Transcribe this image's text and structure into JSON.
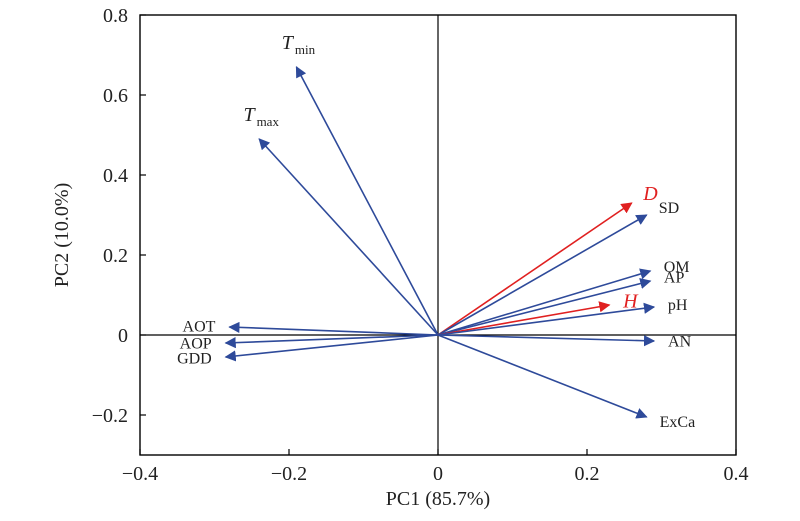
{
  "chart_data": {
    "type": "scatter",
    "subtype": "biplot",
    "title": "",
    "xlabel": "PC1 (85.7%)",
    "ylabel": "PC2 (10.0%)",
    "xlim": [
      -0.4,
      0.4
    ],
    "ylim": [
      -0.3,
      0.8
    ],
    "x_ticks": [
      {
        "value": -0.4,
        "label": "−0.4"
      },
      {
        "value": -0.2,
        "label": "−0.2"
      },
      {
        "value": 0,
        "label": "0"
      },
      {
        "value": 0.2,
        "label": "0.2"
      },
      {
        "value": 0.4,
        "label": "0.4"
      }
    ],
    "y_ticks": [
      {
        "value": -0.2,
        "label": "−0.2"
      },
      {
        "value": 0,
        "label": "0"
      },
      {
        "value": 0.2,
        "label": "0.2"
      },
      {
        "value": 0.4,
        "label": "0.4"
      },
      {
        "value": 0.6,
        "label": "0.6"
      },
      {
        "value": 0.8,
        "label": "0.8"
      }
    ],
    "grid": false,
    "zero_lines": true,
    "colors": {
      "blue": "#2e4a9a",
      "red": "#e02020",
      "axis": "#000000"
    },
    "vectors": [
      {
        "name": "T",
        "sub": "min",
        "italic": true,
        "x": -0.19,
        "y": 0.67,
        "color": "blue"
      },
      {
        "name": "T",
        "sub": "max",
        "italic": true,
        "x": -0.24,
        "y": 0.49,
        "color": "blue"
      },
      {
        "name": "AOT",
        "x": -0.28,
        "y": 0.02,
        "color": "blue"
      },
      {
        "name": "AOP",
        "x": -0.285,
        "y": -0.02,
        "color": "blue"
      },
      {
        "name": "GDD",
        "x": -0.285,
        "y": -0.055,
        "color": "blue"
      },
      {
        "name": "D",
        "italic": true,
        "x": 0.26,
        "y": 0.33,
        "color": "red"
      },
      {
        "name": "SD",
        "x": 0.28,
        "y": 0.3,
        "color": "blue"
      },
      {
        "name": "OM",
        "x": 0.285,
        "y": 0.16,
        "color": "blue"
      },
      {
        "name": "AP",
        "x": 0.285,
        "y": 0.135,
        "color": "blue"
      },
      {
        "name": "H",
        "italic": true,
        "x": 0.23,
        "y": 0.075,
        "color": "red"
      },
      {
        "name": "pH",
        "x": 0.29,
        "y": 0.07,
        "color": "blue"
      },
      {
        "name": "AN",
        "x": 0.29,
        "y": -0.015,
        "color": "blue"
      },
      {
        "name": "ExCa",
        "x": 0.28,
        "y": -0.205,
        "color": "blue"
      }
    ]
  }
}
